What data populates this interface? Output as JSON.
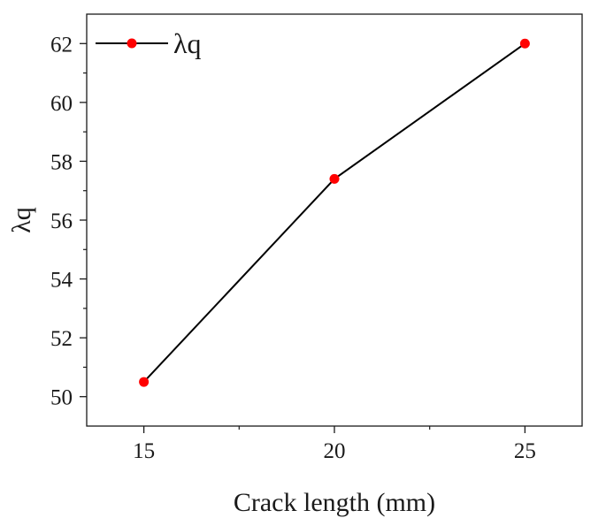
{
  "chart_data": {
    "type": "line",
    "x": [
      15,
      20,
      25
    ],
    "series": [
      {
        "name": "λq",
        "values": [
          50.5,
          57.4,
          62.0
        ],
        "color": "#000000",
        "marker_color": "#ff0000"
      }
    ],
    "xlabel": "Crack length (mm)",
    "ylabel": "λq",
    "xlim": [
      13.5,
      26.5
    ],
    "ylim": [
      49,
      63
    ],
    "x_ticks": [
      15,
      20,
      25
    ],
    "x_tick_labels": [
      "15",
      "20",
      "25"
    ],
    "y_ticks": [
      50,
      52,
      54,
      56,
      58,
      60,
      62
    ],
    "y_tick_labels": [
      "50",
      "52",
      "54",
      "56",
      "58",
      "60",
      "62"
    ],
    "grid": false,
    "legend_position": "top-left"
  }
}
